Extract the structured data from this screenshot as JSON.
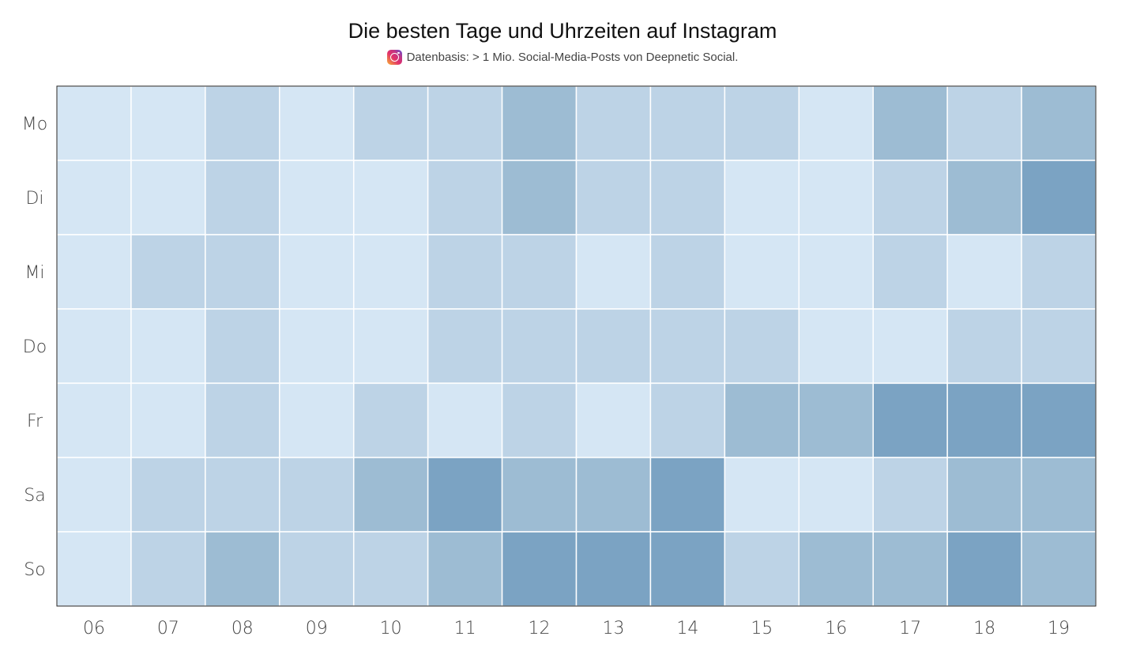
{
  "chart_data": {
    "type": "heatmap",
    "title": "Die besten Tage und Uhrzeiten auf Instagram",
    "subtitle": "Datenbasis: > 1 Mio. Social-Media-Posts von Deepnetic Social.",
    "subtitle_icon": "instagram-icon",
    "x": [
      "06",
      "07",
      "08",
      "09",
      "10",
      "11",
      "12",
      "13",
      "14",
      "15",
      "16",
      "17",
      "18",
      "19"
    ],
    "y": [
      "Mo",
      "Di",
      "Mi",
      "Do",
      "Fr",
      "Sa",
      "So"
    ],
    "values": [
      [
        1,
        1,
        2,
        1,
        2,
        2,
        3,
        2,
        2,
        2,
        1,
        3,
        2,
        3
      ],
      [
        1,
        1,
        2,
        1,
        1,
        2,
        3,
        2,
        2,
        1,
        1,
        2,
        3,
        4
      ],
      [
        1,
        2,
        2,
        1,
        1,
        2,
        2,
        1,
        2,
        1,
        1,
        2,
        1,
        2
      ],
      [
        1,
        1,
        2,
        1,
        1,
        2,
        2,
        2,
        2,
        2,
        1,
        1,
        2,
        2
      ],
      [
        1,
        1,
        2,
        1,
        2,
        1,
        2,
        1,
        2,
        3,
        3,
        4,
        4,
        4
      ],
      [
        1,
        2,
        2,
        2,
        3,
        4,
        3,
        3,
        4,
        1,
        1,
        2,
        3,
        3
      ],
      [
        1,
        2,
        3,
        2,
        2,
        3,
        4,
        4,
        4,
        2,
        3,
        3,
        4,
        3
      ]
    ],
    "color_scale": {
      "1": "#d5e6f4",
      "2": "#bdd3e6",
      "3": "#9dbcd3",
      "4": "#7ba3c3"
    },
    "grid_color": "#ffffff",
    "border_color": "#222222"
  }
}
